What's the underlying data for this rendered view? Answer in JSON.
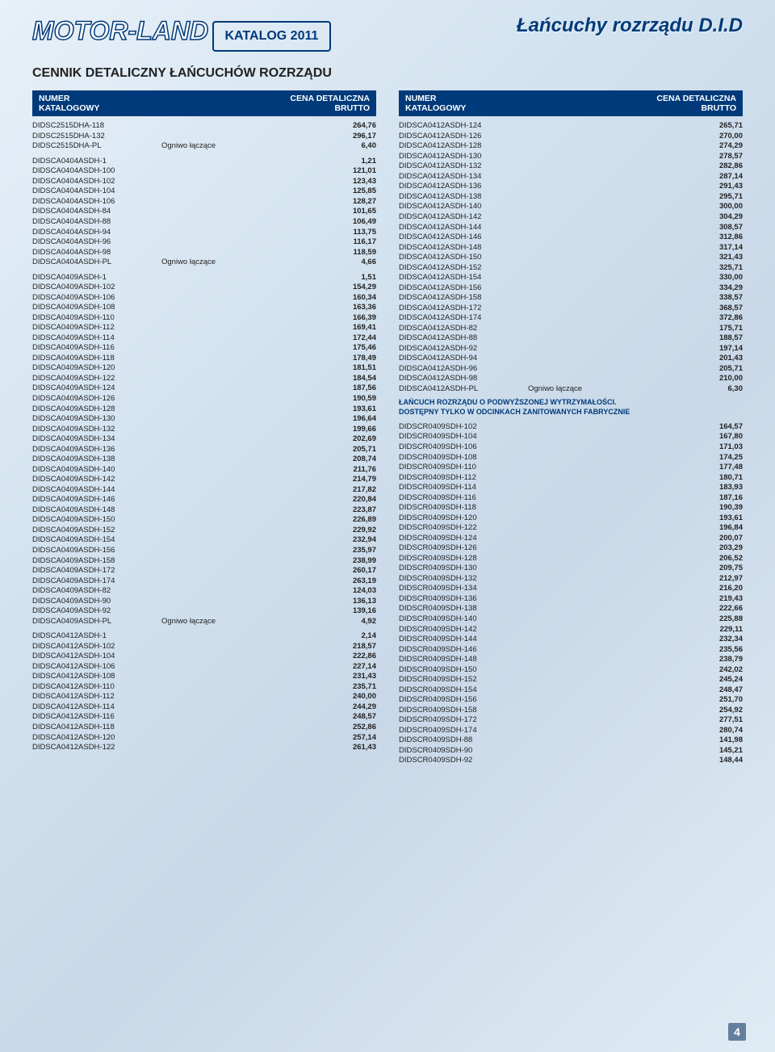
{
  "brand": "MOTOR-LAND",
  "title": "Łańcuchy rozrządu D.I.D",
  "catalog_label": "KATALOG 2011",
  "section_title": "CENNIK DETALICZNY ŁAŃCUCHÓW ROZRZĄDU",
  "header_left_l1": "NUMER",
  "header_left_l2": "KATALOGOWY",
  "header_right_l1": "CENA DETALICZNA",
  "header_right_l2": "BRUTTO",
  "note_l1": "ŁAŃCUCH ROZRZĄDU O PODWYŻSZONEJ WYTRZYMAŁOŚCI.",
  "note_l2": "DOSTĘPNY TYLKO W ODCINKACH ZANITOWANYCH FABRYCZNIE",
  "left_groups": [
    [
      [
        "DIDSC2515DHA-118",
        "",
        "264,76"
      ],
      [
        "DIDSC2515DHA-132",
        "",
        "296,17"
      ],
      [
        "DIDSC2515DHA-PL",
        "Ogniwo łączące",
        "6,40"
      ]
    ],
    [
      [
        "DIDSCA0404ASDH-1",
        "",
        "1,21"
      ],
      [
        "DIDSCA0404ASDH-100",
        "",
        "121,01"
      ],
      [
        "DIDSCA0404ASDH-102",
        "",
        "123,43"
      ],
      [
        "DIDSCA0404ASDH-104",
        "",
        "125,85"
      ],
      [
        "DIDSCA0404ASDH-106",
        "",
        "128,27"
      ],
      [
        "DIDSCA0404ASDH-84",
        "",
        "101,65"
      ],
      [
        "DIDSCA0404ASDH-88",
        "",
        "106,49"
      ],
      [
        "DIDSCA0404ASDH-94",
        "",
        "113,75"
      ],
      [
        "DIDSCA0404ASDH-96",
        "",
        "116,17"
      ],
      [
        "DIDSCA0404ASDH-98",
        "",
        "118,59"
      ],
      [
        "DIDSCA0404ASDH-PL",
        "Ogniwo łączące",
        "4,66"
      ]
    ],
    [
      [
        "DIDSCA0409ASDH-1",
        "",
        "1,51"
      ],
      [
        "DIDSCA0409ASDH-102",
        "",
        "154,29"
      ],
      [
        "DIDSCA0409ASDH-106",
        "",
        "160,34"
      ],
      [
        "DIDSCA0409ASDH-108",
        "",
        "163,36"
      ],
      [
        "DIDSCA0409ASDH-110",
        "",
        "166,39"
      ],
      [
        "DIDSCA0409ASDH-112",
        "",
        "169,41"
      ],
      [
        "DIDSCA0409ASDH-114",
        "",
        "172,44"
      ],
      [
        "DIDSCA0409ASDH-116",
        "",
        "175,46"
      ],
      [
        "DIDSCA0409ASDH-118",
        "",
        "178,49"
      ],
      [
        "DIDSCA0409ASDH-120",
        "",
        "181,51"
      ],
      [
        "DIDSCA0409ASDH-122",
        "",
        "184,54"
      ],
      [
        "DIDSCA0409ASDH-124",
        "",
        "187,56"
      ],
      [
        "DIDSCA0409ASDH-126",
        "",
        "190,59"
      ],
      [
        "DIDSCA0409ASDH-128",
        "",
        "193,61"
      ],
      [
        "DIDSCA0409ASDH-130",
        "",
        "196,64"
      ],
      [
        "DIDSCA0409ASDH-132",
        "",
        "199,66"
      ],
      [
        "DIDSCA0409ASDH-134",
        "",
        "202,69"
      ],
      [
        "DIDSCA0409ASDH-136",
        "",
        "205,71"
      ],
      [
        "DIDSCA0409ASDH-138",
        "",
        "208,74"
      ],
      [
        "DIDSCA0409ASDH-140",
        "",
        "211,76"
      ],
      [
        "DIDSCA0409ASDH-142",
        "",
        "214,79"
      ],
      [
        "DIDSCA0409ASDH-144",
        "",
        "217,82"
      ],
      [
        "DIDSCA0409ASDH-146",
        "",
        "220,84"
      ],
      [
        "DIDSCA0409ASDH-148",
        "",
        "223,87"
      ],
      [
        "DIDSCA0409ASDH-150",
        "",
        "226,89"
      ],
      [
        "DIDSCA0409ASDH-152",
        "",
        "229,92"
      ],
      [
        "DIDSCA0409ASDH-154",
        "",
        "232,94"
      ],
      [
        "DIDSCA0409ASDH-156",
        "",
        "235,97"
      ],
      [
        "DIDSCA0409ASDH-158",
        "",
        "238,99"
      ],
      [
        "DIDSCA0409ASDH-172",
        "",
        "260,17"
      ],
      [
        "DIDSCA0409ASDH-174",
        "",
        "263,19"
      ],
      [
        "DIDSCA0409ASDH-82",
        "",
        "124,03"
      ],
      [
        "DIDSCA0409ASDH-90",
        "",
        "136,13"
      ],
      [
        "DIDSCA0409ASDH-92",
        "",
        "139,16"
      ],
      [
        "DIDSCA0409ASDH-PL",
        "Ogniwo łączące",
        "4,92"
      ]
    ],
    [
      [
        "DIDSCA0412ASDH-1",
        "",
        "2,14"
      ],
      [
        "DIDSCA0412ASDH-102",
        "",
        "218,57"
      ],
      [
        "DIDSCA0412ASDH-104",
        "",
        "222,86"
      ],
      [
        "DIDSCA0412ASDH-106",
        "",
        "227,14"
      ],
      [
        "DIDSCA0412ASDH-108",
        "",
        "231,43"
      ],
      [
        "DIDSCA0412ASDH-110",
        "",
        "235,71"
      ],
      [
        "DIDSCA0412ASDH-112",
        "",
        "240,00"
      ],
      [
        "DIDSCA0412ASDH-114",
        "",
        "244,29"
      ],
      [
        "DIDSCA0412ASDH-116",
        "",
        "248,57"
      ],
      [
        "DIDSCA0412ASDH-118",
        "",
        "252,86"
      ],
      [
        "DIDSCA0412ASDH-120",
        "",
        "257,14"
      ],
      [
        "DIDSCA0412ASDH-122",
        "",
        "261,43"
      ]
    ]
  ],
  "right_group_1": [
    [
      "DIDSCA0412ASDH-124",
      "",
      "265,71"
    ],
    [
      "DIDSCA0412ASDH-126",
      "",
      "270,00"
    ],
    [
      "DIDSCA0412ASDH-128",
      "",
      "274,29"
    ],
    [
      "DIDSCA0412ASDH-130",
      "",
      "278,57"
    ],
    [
      "DIDSCA0412ASDH-132",
      "",
      "282,86"
    ],
    [
      "DIDSCA0412ASDH-134",
      "",
      "287,14"
    ],
    [
      "DIDSCA0412ASDH-136",
      "",
      "291,43"
    ],
    [
      "DIDSCA0412ASDH-138",
      "",
      "295,71"
    ],
    [
      "DIDSCA0412ASDH-140",
      "",
      "300,00"
    ],
    [
      "DIDSCA0412ASDH-142",
      "",
      "304,29"
    ],
    [
      "DIDSCA0412ASDH-144",
      "",
      "308,57"
    ],
    [
      "DIDSCA0412ASDH-146",
      "",
      "312,86"
    ],
    [
      "DIDSCA0412ASDH-148",
      "",
      "317,14"
    ],
    [
      "DIDSCA0412ASDH-150",
      "",
      "321,43"
    ],
    [
      "DIDSCA0412ASDH-152",
      "",
      "325,71"
    ],
    [
      "DIDSCA0412ASDH-154",
      "",
      "330,00"
    ],
    [
      "DIDSCA0412ASDH-156",
      "",
      "334,29"
    ],
    [
      "DIDSCA0412ASDH-158",
      "",
      "338,57"
    ],
    [
      "DIDSCA0412ASDH-172",
      "",
      "368,57"
    ],
    [
      "DIDSCA0412ASDH-174",
      "",
      "372,86"
    ],
    [
      "DIDSCA0412ASDH-82",
      "",
      "175,71"
    ],
    [
      "DIDSCA0412ASDH-88",
      "",
      "188,57"
    ],
    [
      "DIDSCA0412ASDH-92",
      "",
      "197,14"
    ],
    [
      "DIDSCA0412ASDH-94",
      "",
      "201,43"
    ],
    [
      "DIDSCA0412ASDH-96",
      "",
      "205,71"
    ],
    [
      "DIDSCA0412ASDH-98",
      "",
      "210,00"
    ],
    [
      "DIDSCA0412ASDH-PL",
      "Ogniwo łączące",
      "6,30"
    ]
  ],
  "right_group_2": [
    [
      "DIDSCR0409SDH-102",
      "",
      "164,57"
    ],
    [
      "DIDSCR0409SDH-104",
      "",
      "167,80"
    ],
    [
      "DIDSCR0409SDH-106",
      "",
      "171,03"
    ],
    [
      "DIDSCR0409SDH-108",
      "",
      "174,25"
    ],
    [
      "DIDSCR0409SDH-110",
      "",
      "177,48"
    ],
    [
      "DIDSCR0409SDH-112",
      "",
      "180,71"
    ],
    [
      "DIDSCR0409SDH-114",
      "",
      "183,93"
    ],
    [
      "DIDSCR0409SDH-116",
      "",
      "187,16"
    ],
    [
      "DIDSCR0409SDH-118",
      "",
      "190,39"
    ],
    [
      "DIDSCR0409SDH-120",
      "",
      "193,61"
    ],
    [
      "DIDSCR0409SDH-122",
      "",
      "196,84"
    ],
    [
      "DIDSCR0409SDH-124",
      "",
      "200,07"
    ],
    [
      "DIDSCR0409SDH-126",
      "",
      "203,29"
    ],
    [
      "DIDSCR0409SDH-128",
      "",
      "206,52"
    ],
    [
      "DIDSCR0409SDH-130",
      "",
      "209,75"
    ],
    [
      "DIDSCR0409SDH-132",
      "",
      "212,97"
    ],
    [
      "DIDSCR0409SDH-134",
      "",
      "216,20"
    ],
    [
      "DIDSCR0409SDH-136",
      "",
      "219,43"
    ],
    [
      "DIDSCR0409SDH-138",
      "",
      "222,66"
    ],
    [
      "DIDSCR0409SDH-140",
      "",
      "225,88"
    ],
    [
      "DIDSCR0409SDH-142",
      "",
      "229,11"
    ],
    [
      "DIDSCR0409SDH-144",
      "",
      "232,34"
    ],
    [
      "DIDSCR0409SDH-146",
      "",
      "235,56"
    ],
    [
      "DIDSCR0409SDH-148",
      "",
      "238,79"
    ],
    [
      "DIDSCR0409SDH-150",
      "",
      "242,02"
    ],
    [
      "DIDSCR0409SDH-152",
      "",
      "245,24"
    ],
    [
      "DIDSCR0409SDH-154",
      "",
      "248,47"
    ],
    [
      "DIDSCR0409SDH-156",
      "",
      "251,70"
    ],
    [
      "DIDSCR0409SDH-158",
      "",
      "254,92"
    ],
    [
      "DIDSCR0409SDH-172",
      "",
      "277,51"
    ],
    [
      "DIDSCR0409SDH-174",
      "",
      "280,74"
    ],
    [
      "DIDSCR0409SDH-88",
      "",
      "141,98"
    ],
    [
      "DIDSCR0409SDH-90",
      "",
      "145,21"
    ],
    [
      "DIDSCR0409SDH-92",
      "",
      "148,44"
    ]
  ],
  "page_number": "4"
}
